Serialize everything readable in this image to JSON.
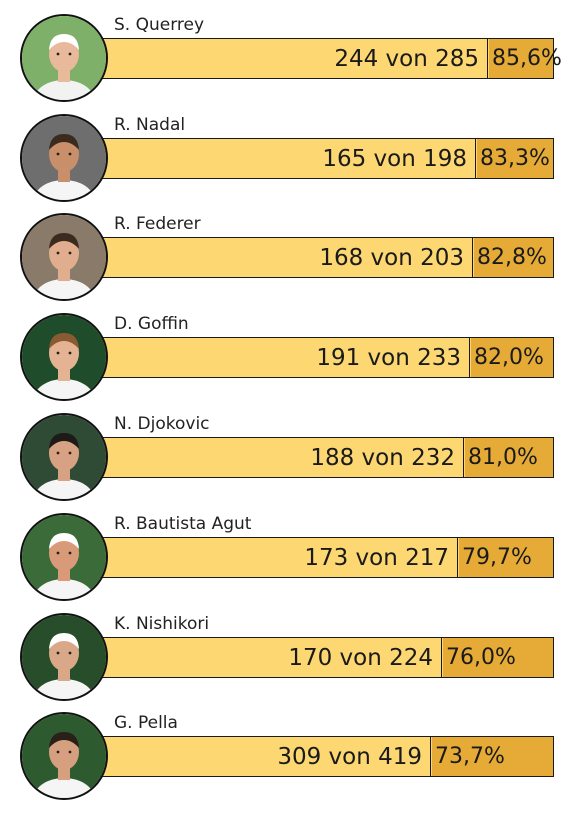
{
  "chart_data": {
    "type": "bar",
    "orientation": "horizontal",
    "categories": [
      "S. Querrey",
      "R. Nadal",
      "R. Federer",
      "D. Goffin",
      "N. Djokovic",
      "R. Bautista Agut",
      "K. Nishikori",
      "G. Pella"
    ],
    "series": [
      {
        "values": [
          85.6,
          83.3,
          82.8,
          82.0,
          81.0,
          79.7,
          76.0,
          73.7
        ]
      }
    ],
    "won": [
      244,
      165,
      168,
      191,
      188,
      173,
      170,
      309
    ],
    "total": [
      285,
      198,
      203,
      233,
      232,
      217,
      224,
      419
    ],
    "count_labels": [
      "244 von 285",
      "165 von 198",
      "168 von 203",
      "191 von 233",
      "188 von 232",
      "173 von 217",
      "170 von 224",
      "309 von 419"
    ],
    "pct_labels": [
      "85,6%",
      "83,3%",
      "82,8%",
      "82,0%",
      "81,0%",
      "79,7%",
      "76,0%",
      "73,7%"
    ],
    "colors": {
      "bar_light": "#fcd772",
      "bar_dark": "#e5ab36",
      "outline": "#1a1a1a"
    },
    "title": "",
    "xlabel": "",
    "ylabel": "",
    "xlim": [
      0,
      100
    ],
    "grid": false,
    "legend": "none"
  },
  "players": [
    {
      "name": "S. Querrey",
      "photo": "player-photo-icon",
      "bg": "#7fb069",
      "skin": "#e8b99a",
      "hair": "#ffffff",
      "shirt": "#f2f2f2"
    },
    {
      "name": "R. Nadal",
      "photo": "player-photo-icon",
      "bg": "#6e6e6e",
      "skin": "#c98e6a",
      "hair": "#3b2a1e",
      "shirt": "#f5f5f5"
    },
    {
      "name": "R. Federer",
      "photo": "player-photo-icon",
      "bg": "#8a7a6a",
      "skin": "#e0ad8e",
      "hair": "#3a2a20",
      "shirt": "#f5f5f5"
    },
    {
      "name": "D. Goffin",
      "photo": "player-photo-icon",
      "bg": "#1f4d2c",
      "skin": "#e4b394",
      "hair": "#8a5a30",
      "shirt": "#f5f5f5"
    },
    {
      "name": "N. Djokovic",
      "photo": "player-photo-icon",
      "bg": "#2f4a35",
      "skin": "#d6a283",
      "hair": "#1e1a18",
      "shirt": "#f5f5f5"
    },
    {
      "name": "R. Bautista Agut",
      "photo": "player-photo-icon",
      "bg": "#3a6b38",
      "skin": "#d89a78",
      "hair": "#ffffff",
      "shirt": "#f5f5f5"
    },
    {
      "name": "K. Nishikori",
      "photo": "player-photo-icon",
      "bg": "#274d2a",
      "skin": "#d9a888",
      "hair": "#ffffff",
      "shirt": "#f5f5f5"
    },
    {
      "name": "G. Pella",
      "photo": "player-photo-icon",
      "bg": "#2e5a30",
      "skin": "#d6a080",
      "hair": "#2a201a",
      "shirt": "#f5f5f5"
    }
  ]
}
